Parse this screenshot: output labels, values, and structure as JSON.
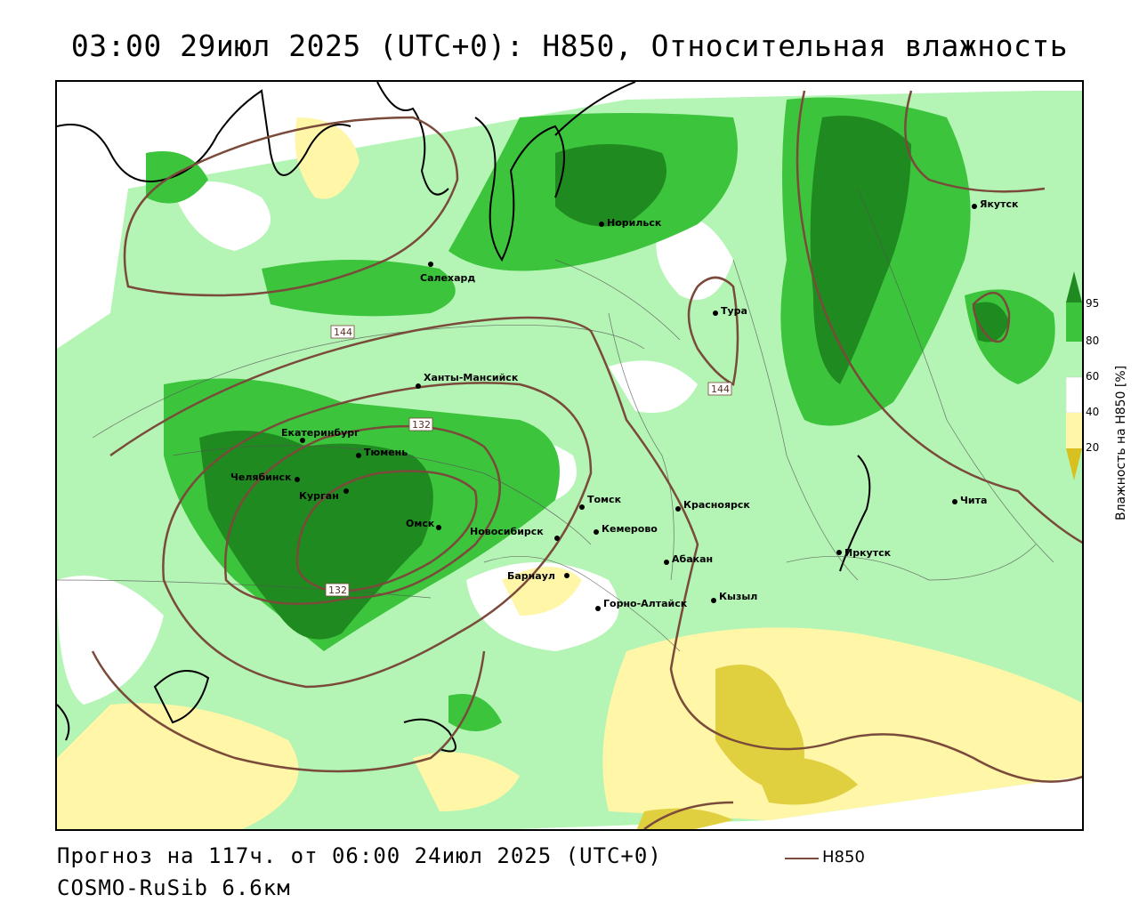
{
  "title": "03:00 29июл 2025 (UTC+0): H850, Относительная влажность",
  "footer": {
    "forecast": "Прогноз на 117ч. от 06:00 24июл 2025 (UTC+0)",
    "model": "COSMO-RuSib 6.6км",
    "legend_label": "H850"
  },
  "colorbar": {
    "title": "Влажность на H850 [%]",
    "ticks": [
      "95",
      "80",
      "60",
      "40",
      "20"
    ],
    "colors": {
      "c95": "#1f8a1f",
      "c80": "#3cc43c",
      "c60": "#b4f4b4",
      "c40": "#ffffff",
      "c20": "#fff6a8",
      "c0": "#d8c020"
    }
  },
  "contour_color": "#7a4a3a",
  "contour_labels": [
    "144",
    "132",
    "132",
    "144"
  ],
  "cities": [
    {
      "name": "Норильск"
    },
    {
      "name": "Якутск"
    },
    {
      "name": "Салехард"
    },
    {
      "name": "Тура"
    },
    {
      "name": "Ханты-Мансийск"
    },
    {
      "name": "Екатеринбург"
    },
    {
      "name": "Тюмень"
    },
    {
      "name": "Челябинск"
    },
    {
      "name": "Курган"
    },
    {
      "name": "Омск"
    },
    {
      "name": "Томск"
    },
    {
      "name": "Красноярск"
    },
    {
      "name": "Новосибирск"
    },
    {
      "name": "Кемерово"
    },
    {
      "name": "Чита"
    },
    {
      "name": "Абакан"
    },
    {
      "name": "Иркутск"
    },
    {
      "name": "Барнаул"
    },
    {
      "name": "Кызыл"
    },
    {
      "name": "Горно-Алтайск"
    }
  ]
}
